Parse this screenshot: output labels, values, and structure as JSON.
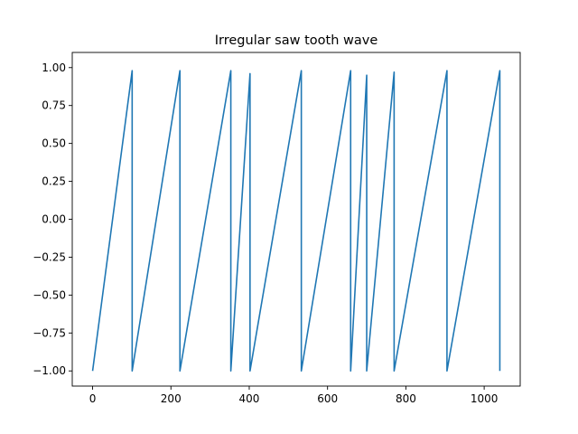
{
  "chart_data": {
    "type": "line",
    "title": "Irregular saw tooth wave",
    "xlabel": "",
    "ylabel": "",
    "xlim": [
      -52,
      1092
    ],
    "ylim": [
      -1.1,
      1.1
    ],
    "grid": false,
    "x_ticks": [
      0,
      200,
      400,
      600,
      800,
      1000
    ],
    "x_tick_labels": [
      "0",
      "200",
      "400",
      "600",
      "800",
      "1000"
    ],
    "y_ticks": [
      1.0,
      0.75,
      0.5,
      0.25,
      0.0,
      -0.25,
      -0.5,
      -0.75,
      -1.0
    ],
    "y_tick_labels": [
      "1.00",
      "0.75",
      "0.50",
      "0.25",
      "0.00",
      "−0.25",
      "−0.50",
      "−0.75",
      "−1.00"
    ],
    "series": [
      {
        "color": "#1f77b4",
        "x": [
          0,
          101,
          101,
          223,
          223,
          353,
          353,
          402,
          402,
          533,
          533,
          659,
          659,
          700,
          700,
          770,
          770,
          905,
          905,
          1040,
          1040
        ],
        "y": [
          -1.0,
          0.98,
          -1.0,
          0.98,
          -1.0,
          0.98,
          -1.0,
          0.96,
          -1.0,
          0.98,
          -1.0,
          0.98,
          -1.0,
          0.95,
          -1.0,
          0.97,
          -1.0,
          0.98,
          -1.0,
          0.98,
          -1.0
        ]
      }
    ]
  }
}
